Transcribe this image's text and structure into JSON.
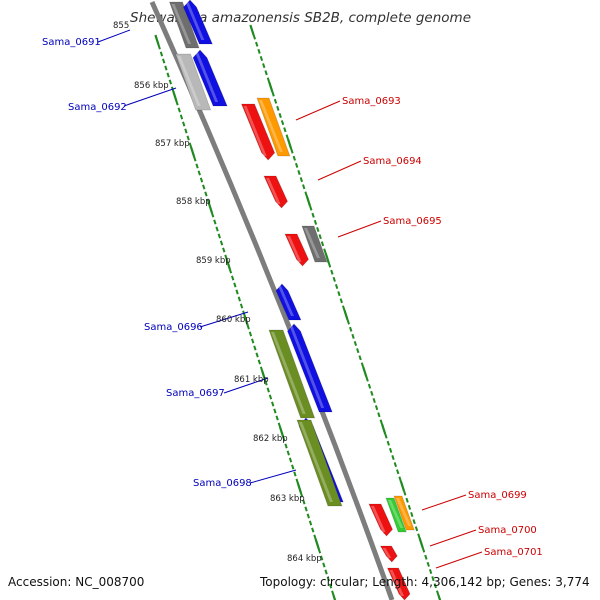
{
  "title": "Shewanella amazonensis SB2B, complete genome",
  "footer": {
    "accession": "Accession: NC_008700",
    "topology": "Topology: circular; Length: 4,306,142 bp; Genes: 3,774"
  },
  "colors": {
    "backbone": "#808080",
    "tick_green": "#1f8a1f",
    "forward_label": "#cc0000",
    "reverse_label": "#0000bb"
  },
  "scale_labels": [
    "855",
    "856 kbp",
    "857 kbp",
    "858 kbp",
    "859 kbp",
    "860 kbp",
    "861 kbp",
    "862 kbp",
    "863 kbp",
    "864 kbp"
  ],
  "genes": [
    {
      "label": "Sama_0691",
      "strand": "reverse"
    },
    {
      "label": "Sama_0692",
      "strand": "reverse"
    },
    {
      "label": "Sama_0693",
      "strand": "forward"
    },
    {
      "label": "Sama_0694",
      "strand": "forward"
    },
    {
      "label": "Sama_0695",
      "strand": "forward"
    },
    {
      "label": "Sama_0696",
      "strand": "reverse"
    },
    {
      "label": "Sama_0697",
      "strand": "reverse"
    },
    {
      "label": "Sama_0698",
      "strand": "reverse"
    },
    {
      "label": "Sama_0699",
      "strand": "forward"
    },
    {
      "label": "Sama_0700",
      "strand": "forward"
    },
    {
      "label": "Sama_0701",
      "strand": "forward"
    }
  ]
}
